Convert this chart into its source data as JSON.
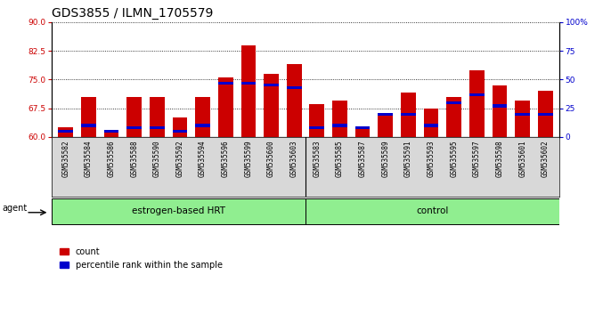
{
  "title": "GDS3855 / ILMN_1705579",
  "samples": [
    "GSM535582",
    "GSM535584",
    "GSM535586",
    "GSM535588",
    "GSM535590",
    "GSM535592",
    "GSM535594",
    "GSM535596",
    "GSM535599",
    "GSM535600",
    "GSM535603",
    "GSM535583",
    "GSM535585",
    "GSM535587",
    "GSM535589",
    "GSM535591",
    "GSM535593",
    "GSM535595",
    "GSM535597",
    "GSM535598",
    "GSM535601",
    "GSM535602"
  ],
  "count_values": [
    62.5,
    70.5,
    61.5,
    70.5,
    70.5,
    65.0,
    70.5,
    75.5,
    84.0,
    76.5,
    79.0,
    68.5,
    69.5,
    62.0,
    65.5,
    71.5,
    67.5,
    70.5,
    77.5,
    73.5,
    69.5,
    72.0
  ],
  "percentile_values": [
    5,
    10,
    5,
    8,
    8,
    5,
    10,
    47,
    47,
    45,
    43,
    8,
    10,
    8,
    20,
    20,
    10,
    30,
    37,
    27,
    20,
    20
  ],
  "n_hrt": 11,
  "bar_color": "#CC0000",
  "percentile_color": "#0000CC",
  "ylim_left": [
    60,
    90
  ],
  "ylim_right": [
    0,
    100
  ],
  "yticks_left": [
    60,
    67.5,
    75,
    82.5,
    90
  ],
  "yticks_right": [
    0,
    25,
    50,
    75,
    100
  ],
  "bar_width": 0.65,
  "title_fontsize": 10,
  "tick_fontsize": 6.5,
  "group1_label": "estrogen-based HRT",
  "group2_label": "control",
  "group_color": "#90EE90",
  "xlabel_bg_color": "#d8d8d8"
}
